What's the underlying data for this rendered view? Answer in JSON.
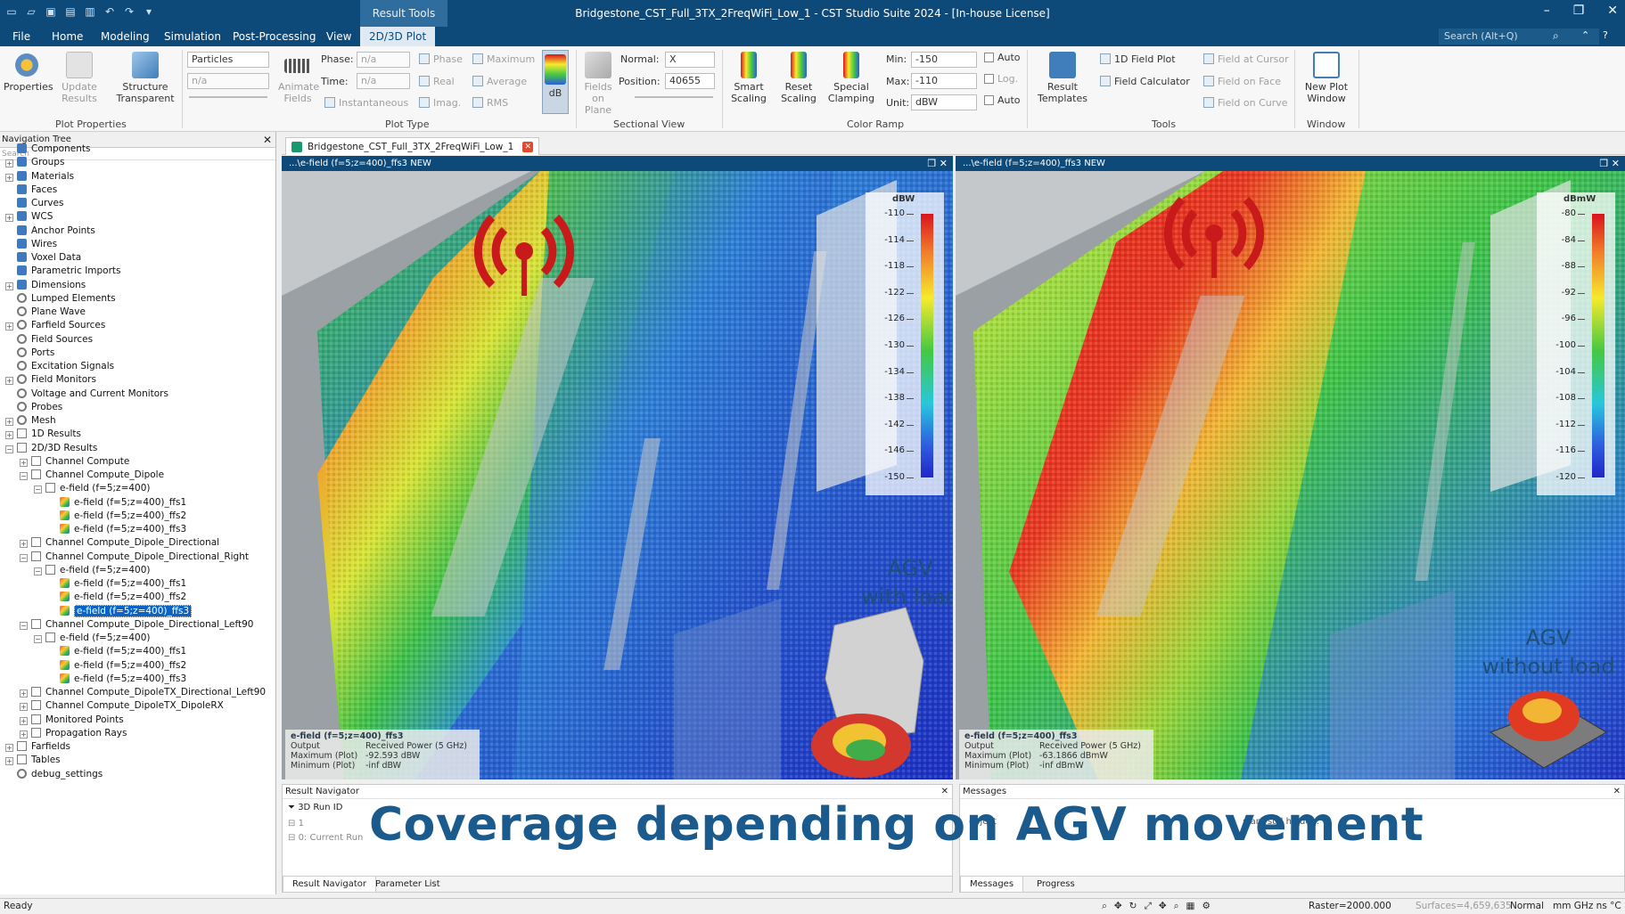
{
  "window": {
    "title": "Bridgestone_CST_Full_3TX_2FreqWiFi_Low_1 - CST Studio Suite 2024 - [In-house License]",
    "context_group": "Result Tools"
  },
  "menu": {
    "tabs": [
      "File",
      "Home",
      "Modeling",
      "Simulation",
      "Post-Processing",
      "View",
      "2D/3D Plot"
    ],
    "search_placeholder": "Search (Alt+Q)"
  },
  "ribbon": {
    "properties": "Properties",
    "update_results": "Update Results",
    "structure_transparent": "Structure Transparent",
    "plot_properties_label": "Plot Properties",
    "particles": "Particles",
    "na": "n/a",
    "animate_fields": "Animate Fields",
    "phase_label": "Phase:",
    "time_label": "Time:",
    "phase_value": "n/a",
    "time_value": "n/a",
    "instantaneous": "Instantaneous",
    "phase_opt": "Phase",
    "real_opt": "Real",
    "imag_opt": "Imag.",
    "maximum_opt": "Maximum",
    "average_opt": "Average",
    "rms_opt": "RMS",
    "db_btn": "dB",
    "plot_type_label": "Plot Type",
    "fields_on_plane": "Fields on Plane",
    "normal_label": "Normal:",
    "normal_value": "X",
    "position_label": "Position:",
    "position_value": "40655",
    "sectional_view_label": "Sectional View",
    "smart_scaling": "Smart Scaling",
    "reset_scaling": "Reset Scaling",
    "special_clamping": "Special Clamping",
    "min_label": "Min:",
    "max_label": "Max:",
    "unit_label": "Unit:",
    "min_value": "-150",
    "max_value": "-110",
    "unit_value": "dBW",
    "auto1": "Auto",
    "log": "Log.",
    "auto2": "Auto",
    "color_ramp_label": "Color Ramp",
    "result_templates": "Result Templates",
    "field_1d_plot": "1D Field Plot",
    "field_calculator": "Field Calculator",
    "field_at_cursor": "Field at Cursor",
    "field_on_face": "Field on Face",
    "field_on_curve": "Field on Curve",
    "tools_label": "Tools",
    "new_plot_window": "New Plot Window",
    "window_label": "Window"
  },
  "nav": {
    "title": "Navigation Tree",
    "search_placeholder": "Search",
    "items": [
      "Components",
      "Groups",
      "Materials",
      "Faces",
      "Curves",
      "WCS",
      "Anchor Points",
      "Wires",
      "Voxel Data",
      "Parametric Imports",
      "Dimensions",
      "Lumped Elements",
      "Plane Wave",
      "Farfield Sources",
      "Field Sources",
      "Ports",
      "Excitation Signals",
      "Field Monitors",
      "Voltage and Current Monitors",
      "Probes",
      "Mesh",
      "1D Results",
      "2D/3D Results",
      "Channel Compute",
      "Channel Compute_Dipole",
      "e-field (f=5;z=400)",
      "e-field (f=5;z=400)_ffs1",
      "e-field (f=5;z=400)_ffs2",
      "e-field (f=5;z=400)_ffs3",
      "Channel Compute_Dipole_Directional",
      "Channel Compute_Dipole_Directional_Right",
      "e-field (f=5;z=400)",
      "e-field (f=5;z=400)_ffs1",
      "e-field (f=5;z=400)_ffs2",
      "e-field (f=5;z=400)_ffs3",
      "Channel Compute_Dipole_Directional_Left90",
      "e-field (f=5;z=400)",
      "e-field (f=5;z=400)_ffs1",
      "e-field (f=5;z=400)_ffs2",
      "e-field (f=5;z=400)_ffs3",
      "Channel Compute_DipoleTX_Directional_Left90",
      "Channel Compute_DipoleTX_DipoleRX",
      "Monitored Points",
      "Propagation Rays",
      "Farfields",
      "Tables",
      "debug_settings"
    ]
  },
  "doc_tab": "Bridgestone_CST_Full_3TX_2FreqWiFi_Low_1",
  "views": [
    {
      "title": "...\\e-field (f=5;z=400)_ffs3 NEW",
      "unit": "dBW",
      "ticks": [
        "-110",
        "-114",
        "-118",
        "-122",
        "-126",
        "-130",
        "-134",
        "-138",
        "-142",
        "-146",
        "-150"
      ],
      "info_title": "e-field (f=5;z=400)_ffs3",
      "output_k": "Output",
      "output_v": "Received Power (5 GHz)",
      "max_k": "Maximum (Plot)",
      "max_v": "-92.593 dBW",
      "min_k": "Minimum (Plot)",
      "min_v": "-inf dBW",
      "annotation_1": "AGV",
      "annotation_2": "with load"
    },
    {
      "title": "...\\e-field (f=5;z=400)_ffs3 NEW",
      "unit": "dBmW",
      "ticks": [
        "-80",
        "-84",
        "-88",
        "-92",
        "-96",
        "-100",
        "-104",
        "-108",
        "-112",
        "-116",
        "-120"
      ],
      "info_title": "e-field (f=5;z=400)_ffs3",
      "output_k": "Output",
      "output_v": "Received Power (5 GHz)",
      "max_k": "Maximum (Plot)",
      "max_v": "-63.1866 dBmW",
      "min_k": "Minimum (Plot)",
      "min_v": "-inf dBmW",
      "annotation_1": "AGV",
      "annotation_2": "without load"
    }
  ],
  "result_nav": {
    "title": "Result Navigator",
    "col": "3D Run ID",
    "row1": "1",
    "row2": "0: Current Run",
    "tab1": "Result Navigator",
    "tab2": "Parameter List"
  },
  "messages": {
    "title": "Messages",
    "text_a": "object",
    "text_b": "s are still hidden.",
    "tab1": "Messages",
    "tab2": "Progress"
  },
  "caption": "Coverage depending on AGV movement",
  "status": {
    "ready": "Ready",
    "raster": "Raster=2000.000",
    "surfaces": "Surfaces=4,659,635",
    "mode": "Normal",
    "units": "mm  GHz  ns  °C"
  },
  "colors": {
    "accent": "#0d4a7a",
    "caption": "#1a5a8c"
  }
}
